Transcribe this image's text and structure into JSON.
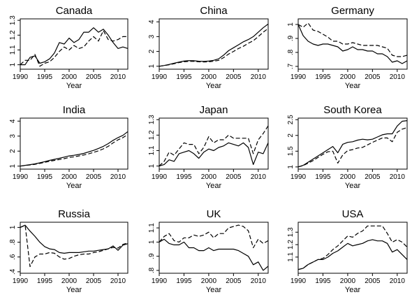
{
  "chart_data": [
    {
      "type": "line",
      "title": "Canada",
      "xlabel": "Year",
      "ylabel": "",
      "xlim": [
        1990,
        2012
      ],
      "ylim": [
        0.97,
        1.31
      ],
      "xticks": [
        1990,
        1995,
        2000,
        2005,
        2010
      ],
      "xtick_labels": [
        "1990",
        "1995",
        "2000",
        "2005",
        "2010"
      ],
      "yticks": [
        1,
        1.1,
        1.2,
        1.3
      ],
      "ytick_labels": [
        "1",
        "1.1",
        "1.2",
        "1.3"
      ],
      "x": [
        1990,
        1991,
        1992,
        1993,
        1994,
        1995,
        1996,
        1997,
        1998,
        1999,
        2000,
        2001,
        2002,
        2003,
        2004,
        2005,
        2006,
        2007,
        2008,
        2009,
        2010,
        2011,
        2012
      ],
      "series": [
        {
          "style": "solid",
          "values": [
            1.0,
            1.0,
            1.05,
            1.06,
            1.01,
            1.02,
            1.04,
            1.08,
            1.15,
            1.14,
            1.18,
            1.15,
            1.17,
            1.22,
            1.22,
            1.25,
            1.22,
            1.24,
            1.2,
            1.15,
            1.11,
            1.12,
            1.11
          ]
        },
        {
          "style": "dashed",
          "values": [
            1.0,
            1.03,
            1.03,
            1.07,
            0.99,
            1.01,
            1.02,
            1.05,
            1.09,
            1.12,
            1.1,
            1.13,
            1.11,
            1.12,
            1.16,
            1.19,
            1.16,
            1.23,
            1.17,
            1.16,
            1.17,
            1.19,
            1.19
          ]
        }
      ]
    },
    {
      "type": "line",
      "title": "China",
      "xlabel": "Year",
      "ylabel": "",
      "xlim": [
        1990,
        2012
      ],
      "ylim": [
        0.8,
        4.2
      ],
      "xticks": [
        1990,
        1995,
        2000,
        2005,
        2010
      ],
      "xtick_labels": [
        "1990",
        "1995",
        "2000",
        "2005",
        "2010"
      ],
      "yticks": [
        1,
        2,
        3,
        4
      ],
      "ytick_labels": [
        "1",
        "2",
        "3",
        "4"
      ],
      "x": [
        1990,
        1991,
        1992,
        1993,
        1994,
        1995,
        1996,
        1997,
        1998,
        1999,
        2000,
        2001,
        2002,
        2003,
        2004,
        2005,
        2006,
        2007,
        2008,
        2009,
        2010,
        2011,
        2012
      ],
      "series": [
        {
          "style": "solid",
          "values": [
            1.0,
            1.05,
            1.12,
            1.2,
            1.28,
            1.35,
            1.38,
            1.37,
            1.34,
            1.33,
            1.35,
            1.4,
            1.5,
            1.75,
            2.05,
            2.25,
            2.45,
            2.65,
            2.8,
            3.0,
            3.3,
            3.6,
            3.85
          ]
        },
        {
          "style": "dashed",
          "values": [
            1.0,
            1.04,
            1.1,
            1.17,
            1.25,
            1.3,
            1.33,
            1.33,
            1.3,
            1.29,
            1.3,
            1.34,
            1.4,
            1.58,
            1.82,
            2.0,
            2.2,
            2.35,
            2.55,
            2.72,
            3.0,
            3.3,
            3.55
          ]
        }
      ]
    },
    {
      "type": "line",
      "title": "Germany",
      "xlabel": "Year",
      "ylabel": "",
      "xlim": [
        1990,
        2012
      ],
      "ylim": [
        0.68,
        1.04
      ],
      "xticks": [
        1990,
        1995,
        2000,
        2005,
        2010
      ],
      "xtick_labels": [
        "1990",
        "1995",
        "2000",
        "2005",
        "2010"
      ],
      "yticks": [
        0.7,
        0.8,
        0.9,
        1
      ],
      "ytick_labels": [
        ".7",
        ".8",
        ".9",
        "1"
      ],
      "x": [
        1990,
        1991,
        1992,
        1993,
        1994,
        1995,
        1996,
        1997,
        1998,
        1999,
        2000,
        2001,
        2002,
        2003,
        2004,
        2005,
        2006,
        2007,
        2008,
        2009,
        2010,
        2011,
        2012
      ],
      "series": [
        {
          "style": "solid",
          "values": [
            1.0,
            0.92,
            0.88,
            0.86,
            0.85,
            0.86,
            0.86,
            0.85,
            0.84,
            0.81,
            0.82,
            0.84,
            0.82,
            0.82,
            0.81,
            0.81,
            0.79,
            0.79,
            0.77,
            0.73,
            0.74,
            0.72,
            0.74
          ]
        },
        {
          "style": "dashed",
          "values": [
            1.0,
            0.98,
            1.01,
            0.96,
            0.95,
            0.93,
            0.91,
            0.88,
            0.88,
            0.86,
            0.86,
            0.87,
            0.86,
            0.85,
            0.85,
            0.85,
            0.85,
            0.84,
            0.83,
            0.78,
            0.77,
            0.77,
            0.78
          ]
        }
      ]
    },
    {
      "type": "line",
      "title": "India",
      "xlabel": "Year",
      "ylabel": "",
      "xlim": [
        1990,
        2012
      ],
      "ylim": [
        0.8,
        4.2
      ],
      "xticks": [
        1990,
        1995,
        2000,
        2005,
        2010
      ],
      "xtick_labels": [
        "1990",
        "1995",
        "2000",
        "2005",
        "2010"
      ],
      "yticks": [
        1,
        2,
        3,
        4
      ],
      "ytick_labels": [
        "1",
        "2",
        "3",
        "4"
      ],
      "x": [
        1990,
        1991,
        1992,
        1993,
        1994,
        1995,
        1996,
        1997,
        1998,
        1999,
        2000,
        2001,
        2002,
        2003,
        2004,
        2005,
        2006,
        2007,
        2008,
        2009,
        2010,
        2011,
        2012
      ],
      "series": [
        {
          "style": "solid",
          "values": [
            1.0,
            1.05,
            1.1,
            1.15,
            1.22,
            1.3,
            1.38,
            1.45,
            1.52,
            1.6,
            1.68,
            1.72,
            1.78,
            1.85,
            1.95,
            2.05,
            2.18,
            2.32,
            2.5,
            2.72,
            2.9,
            3.05,
            3.3
          ]
        },
        {
          "style": "dashed",
          "values": [
            1.0,
            1.04,
            1.08,
            1.12,
            1.18,
            1.25,
            1.32,
            1.38,
            1.44,
            1.5,
            1.58,
            1.62,
            1.68,
            1.74,
            1.82,
            1.92,
            2.02,
            2.15,
            2.32,
            2.55,
            2.75,
            2.9,
            3.1
          ]
        }
      ]
    },
    {
      "type": "line",
      "title": "Japan",
      "xlabel": "Year",
      "ylabel": "",
      "xlim": [
        1990,
        2012
      ],
      "ylim": [
        0.98,
        1.31
      ],
      "xticks": [
        1990,
        1995,
        2000,
        2005,
        2010
      ],
      "xtick_labels": [
        "1990",
        "1995",
        "2000",
        "2005",
        "2010"
      ],
      "yticks": [
        1,
        1.1,
        1.2,
        1.3
      ],
      "ytick_labels": [
        "1",
        "1.1",
        "1.2",
        "1.3"
      ],
      "x": [
        1990,
        1991,
        1992,
        1993,
        1994,
        1995,
        1996,
        1997,
        1998,
        1999,
        2000,
        2001,
        2002,
        2003,
        2004,
        2005,
        2006,
        2007,
        2008,
        2009,
        2010,
        2011,
        2012
      ],
      "series": [
        {
          "style": "solid",
          "values": [
            1.0,
            1.01,
            1.04,
            1.03,
            1.08,
            1.09,
            1.1,
            1.08,
            1.05,
            1.09,
            1.11,
            1.1,
            1.12,
            1.13,
            1.15,
            1.14,
            1.13,
            1.15,
            1.12,
            1.01,
            1.09,
            1.08,
            1.15
          ]
        },
        {
          "style": "dashed",
          "values": [
            1.0,
            1.03,
            1.09,
            1.07,
            1.11,
            1.15,
            1.14,
            1.14,
            1.08,
            1.12,
            1.19,
            1.15,
            1.17,
            1.17,
            1.2,
            1.18,
            1.18,
            1.18,
            1.18,
            1.08,
            1.17,
            1.21,
            1.26
          ]
        }
      ]
    },
    {
      "type": "line",
      "title": "South Korea",
      "xlabel": "Year",
      "ylabel": "",
      "xlim": [
        1990,
        2012
      ],
      "ylim": [
        0.93,
        2.55
      ],
      "xticks": [
        1990,
        1995,
        2000,
        2005,
        2010
      ],
      "xtick_labels": [
        "1990",
        "1995",
        "2000",
        "2005",
        "2010"
      ],
      "yticks": [
        1,
        1.5,
        2,
        2.5
      ],
      "ytick_labels": [
        "1",
        "1.5",
        "2",
        "2.5"
      ],
      "x": [
        1990,
        1991,
        1992,
        1993,
        1994,
        1995,
        1996,
        1997,
        1998,
        1999,
        2000,
        2001,
        2002,
        2003,
        2004,
        2005,
        2006,
        2007,
        2008,
        2009,
        2010,
        2011,
        2012
      ],
      "series": [
        {
          "style": "solid",
          "values": [
            1.0,
            1.05,
            1.15,
            1.25,
            1.35,
            1.45,
            1.55,
            1.65,
            1.45,
            1.72,
            1.78,
            1.8,
            1.85,
            1.88,
            1.86,
            1.88,
            1.95,
            2.02,
            2.05,
            2.05,
            2.3,
            2.45,
            2.47
          ]
        },
        {
          "style": "dashed",
          "values": [
            1.0,
            1.04,
            1.12,
            1.2,
            1.3,
            1.4,
            1.48,
            1.5,
            1.12,
            1.38,
            1.52,
            1.55,
            1.6,
            1.62,
            1.7,
            1.78,
            1.85,
            1.92,
            1.92,
            1.8,
            2.1,
            2.2,
            2.25
          ]
        }
      ]
    },
    {
      "type": "line",
      "title": "Russia",
      "xlabel": "Year",
      "ylabel": "",
      "xlim": [
        1990,
        2012
      ],
      "ylim": [
        0.38,
        1.07
      ],
      "xticks": [
        1990,
        1995,
        2000,
        2005,
        2010
      ],
      "xtick_labels": [
        "1990",
        "1995",
        "2000",
        "2005",
        "2010"
      ],
      "yticks": [
        0.4,
        0.6,
        0.8,
        1
      ],
      "ytick_labels": [
        ".4",
        ".6",
        ".8",
        "1"
      ],
      "x": [
        1990,
        1991,
        1992,
        1993,
        1994,
        1995,
        1996,
        1997,
        1998,
        1999,
        2000,
        2001,
        2002,
        2003,
        2004,
        2005,
        2006,
        2007,
        2008,
        2009,
        2010,
        2011,
        2012
      ],
      "series": [
        {
          "style": "solid",
          "values": [
            1.0,
            1.03,
            0.95,
            0.88,
            0.8,
            0.74,
            0.71,
            0.7,
            0.66,
            0.65,
            0.66,
            0.66,
            0.66,
            0.67,
            0.68,
            0.68,
            0.69,
            0.7,
            0.71,
            0.75,
            0.69,
            0.76,
            0.78
          ]
        },
        {
          "style": "dashed",
          "values": [
            1.0,
            1.03,
            0.47,
            0.6,
            0.64,
            0.64,
            0.66,
            0.65,
            0.6,
            0.57,
            0.58,
            0.61,
            0.63,
            0.64,
            0.64,
            0.66,
            0.67,
            0.69,
            0.71,
            0.73,
            0.72,
            0.77,
            0.79
          ]
        }
      ]
    },
    {
      "type": "line",
      "title": "UK",
      "xlabel": "Year",
      "ylabel": "",
      "xlim": [
        1990,
        2012
      ],
      "ylim": [
        0.78,
        1.14
      ],
      "xticks": [
        1990,
        1995,
        2000,
        2005,
        2010
      ],
      "xtick_labels": [
        "1990",
        "1995",
        "2000",
        "2005",
        "2010"
      ],
      "yticks": [
        0.8,
        0.9,
        1,
        1.1
      ],
      "ytick_labels": [
        ".8",
        ".9",
        "1",
        "1.1"
      ],
      "x": [
        1990,
        1991,
        1992,
        1993,
        1994,
        1995,
        1996,
        1997,
        1998,
        1999,
        2000,
        2001,
        2002,
        2003,
        2004,
        2005,
        2006,
        2007,
        2008,
        2009,
        2010,
        2011,
        2012
      ],
      "series": [
        {
          "style": "solid",
          "values": [
            1.0,
            1.02,
            0.99,
            0.98,
            0.98,
            1.0,
            0.96,
            0.96,
            0.94,
            0.94,
            0.96,
            0.94,
            0.95,
            0.95,
            0.95,
            0.95,
            0.94,
            0.92,
            0.9,
            0.84,
            0.86,
            0.8,
            0.83
          ]
        },
        {
          "style": "dashed",
          "values": [
            1.0,
            1.04,
            1.06,
            1.01,
            1.0,
            1.03,
            1.03,
            1.05,
            1.04,
            1.05,
            1.07,
            1.03,
            1.06,
            1.06,
            1.1,
            1.11,
            1.12,
            1.11,
            1.08,
            0.96,
            1.02,
            0.99,
            1.01
          ]
        }
      ]
    },
    {
      "type": "line",
      "title": "USA",
      "xlabel": "Year",
      "ylabel": "",
      "xlim": [
        1990,
        2012
      ],
      "ylim": [
        0.97,
        1.38
      ],
      "xticks": [
        1990,
        1995,
        2000,
        2005,
        2010
      ],
      "xtick_labels": [
        "1990",
        "1995",
        "2000",
        "2005",
        "2010"
      ],
      "yticks": [
        1.1,
        1.2,
        1.3
      ],
      "ytick_labels": [
        "1.1",
        "1.2",
        "1.3"
      ],
      "x": [
        1990,
        1991,
        1992,
        1993,
        1994,
        1995,
        1996,
        1997,
        1998,
        1999,
        2000,
        2001,
        2002,
        2003,
        2004,
        2005,
        2006,
        2007,
        2008,
        2009,
        2010,
        2011,
        2012
      ],
      "series": [
        {
          "style": "solid",
          "values": [
            1.0,
            1.01,
            1.04,
            1.06,
            1.08,
            1.08,
            1.1,
            1.13,
            1.15,
            1.18,
            1.21,
            1.19,
            1.2,
            1.21,
            1.23,
            1.24,
            1.23,
            1.23,
            1.21,
            1.14,
            1.16,
            1.12,
            1.08
          ]
        },
        {
          "style": "dashed",
          "values": [
            1.0,
            1.01,
            1.04,
            1.06,
            1.08,
            1.09,
            1.12,
            1.16,
            1.19,
            1.23,
            1.27,
            1.26,
            1.29,
            1.31,
            1.35,
            1.35,
            1.35,
            1.35,
            1.29,
            1.22,
            1.24,
            1.22,
            1.18
          ]
        }
      ]
    }
  ]
}
